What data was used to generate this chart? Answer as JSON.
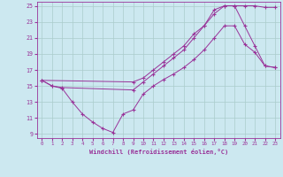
{
  "xlabel": "Windchill (Refroidissement éolien,°C)",
  "bg_color": "#cce8f0",
  "line_color": "#993399",
  "grid_color": "#aacccc",
  "xlim": [
    -0.5,
    23.5
  ],
  "ylim": [
    8.5,
    25.5
  ],
  "xticks": [
    0,
    1,
    2,
    3,
    4,
    5,
    6,
    7,
    8,
    9,
    10,
    11,
    12,
    13,
    14,
    15,
    16,
    17,
    18,
    19,
    20,
    21,
    22,
    23
  ],
  "yticks": [
    9,
    11,
    13,
    15,
    17,
    19,
    21,
    23,
    25
  ],
  "line1_x": [
    0,
    1,
    2,
    3,
    4,
    5,
    6,
    7,
    8,
    9,
    10,
    11,
    12,
    13,
    14,
    15,
    16,
    17,
    18,
    19,
    20,
    21,
    22,
    23
  ],
  "line1_y": [
    15.7,
    15.0,
    14.7,
    13.0,
    11.5,
    10.5,
    9.7,
    9.2,
    11.5,
    12.0,
    14.0,
    15.0,
    15.8,
    16.5,
    17.3,
    18.3,
    19.5,
    21.0,
    22.5,
    22.5,
    20.2,
    19.2,
    17.5,
    17.3
  ],
  "line2_x": [
    0,
    9,
    10,
    11,
    12,
    13,
    14,
    15,
    16,
    17,
    18,
    19,
    20,
    21,
    22,
    23
  ],
  "line2_y": [
    15.7,
    15.5,
    16.0,
    17.0,
    18.0,
    19.0,
    20.0,
    21.5,
    22.5,
    24.0,
    25.0,
    25.0,
    25.0,
    25.0,
    24.8,
    24.8
  ],
  "line3_x": [
    0,
    1,
    2,
    9,
    10,
    11,
    12,
    13,
    14,
    15,
    16,
    17,
    18,
    19,
    20,
    21,
    22,
    23
  ],
  "line3_y": [
    15.7,
    15.0,
    14.8,
    14.5,
    15.5,
    16.5,
    17.5,
    18.5,
    19.5,
    21.0,
    22.5,
    24.5,
    25.0,
    25.0,
    22.5,
    20.0,
    17.5,
    17.3
  ]
}
